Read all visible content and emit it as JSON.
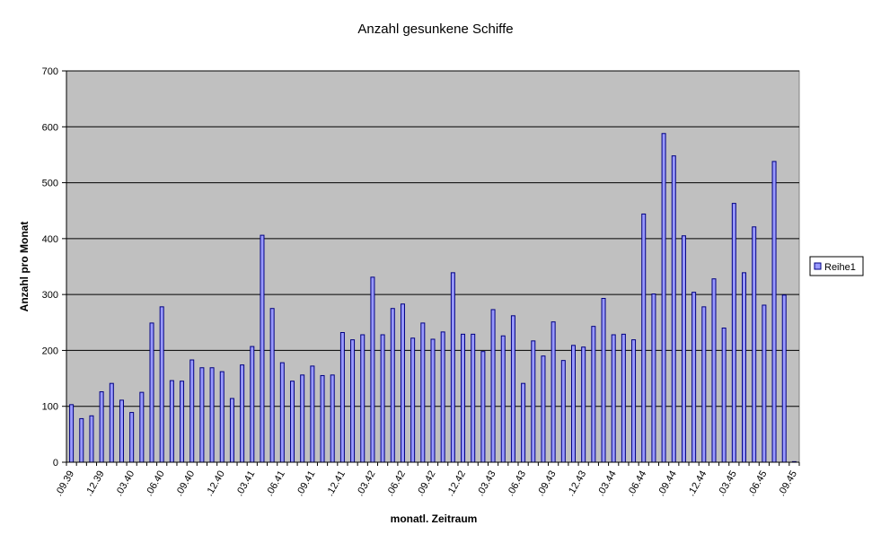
{
  "chart_data": {
    "type": "bar",
    "title": "Anzahl gesunkene Schiffe",
    "xlabel": "monatl. Zeitraum",
    "ylabel": "Anzahl pro Monat",
    "ylim": [
      0,
      700
    ],
    "yticks": [
      0,
      100,
      200,
      300,
      400,
      500,
      600,
      700
    ],
    "grid": true,
    "legend_position": "right",
    "colors": {
      "plot_background": "#c0c0c0",
      "bar_fill": "#9999ff",
      "bar_stroke": "#000080",
      "gridline": "#000000"
    },
    "xtick_labels": [
      {
        "index": 0,
        "label": ".09.39"
      },
      {
        "index": 3,
        "label": ".12.39"
      },
      {
        "index": 6,
        "label": ".03.40"
      },
      {
        "index": 9,
        "label": ".06.40"
      },
      {
        "index": 12,
        "label": ".09.40"
      },
      {
        "index": 15,
        "label": ".12.40"
      },
      {
        "index": 18,
        "label": ".03.41"
      },
      {
        "index": 21,
        "label": ".06.41"
      },
      {
        "index": 24,
        "label": ".09.41"
      },
      {
        "index": 27,
        "label": ".12.41"
      },
      {
        "index": 30,
        "label": ".03.42"
      },
      {
        "index": 33,
        "label": ".06.42"
      },
      {
        "index": 36,
        "label": ".09.42"
      },
      {
        "index": 39,
        "label": ".12.42"
      },
      {
        "index": 42,
        "label": ".03.43"
      },
      {
        "index": 45,
        "label": ".06.43"
      },
      {
        "index": 48,
        "label": ".09.43"
      },
      {
        "index": 51,
        "label": ".12.43"
      },
      {
        "index": 54,
        "label": ".03.44"
      },
      {
        "index": 57,
        "label": ".06.44"
      },
      {
        "index": 60,
        "label": ".09.44"
      },
      {
        "index": 63,
        "label": ".12.44"
      },
      {
        "index": 66,
        "label": ".03.45"
      },
      {
        "index": 69,
        "label": ".06.45"
      },
      {
        "index": 72,
        "label": ".09.45"
      }
    ],
    "series": [
      {
        "name": "Reihe1",
        "values": [
          103,
          78,
          83,
          126,
          141,
          111,
          89,
          125,
          249,
          278,
          146,
          145,
          183,
          169,
          169,
          162,
          114,
          174,
          207,
          406,
          275,
          178,
          145,
          156,
          172,
          155,
          156,
          232,
          219,
          228,
          331,
          228,
          275,
          283,
          222,
          249,
          220,
          233,
          339,
          229,
          229,
          198,
          273,
          226,
          262,
          141,
          217,
          190,
          251,
          182,
          209,
          206,
          243,
          293,
          228,
          229,
          219,
          444,
          301,
          588,
          548,
          405,
          304,
          278,
          328,
          240,
          463,
          339,
          421,
          281,
          538,
          299,
          1
        ]
      }
    ]
  }
}
